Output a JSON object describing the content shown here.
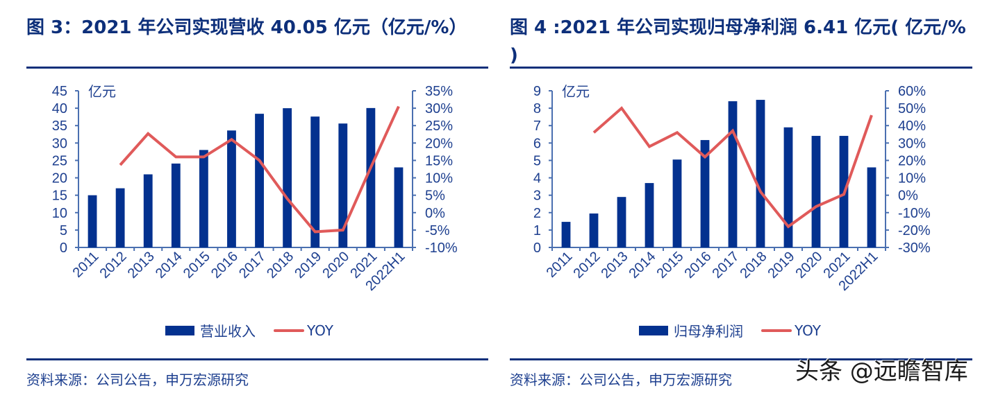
{
  "colors": {
    "bar": "#03318f",
    "line": "#e05a5a",
    "axis": "#4a6fb0",
    "text": "#1d3f8f",
    "title": "#0d2f7a"
  },
  "figures": [
    {
      "title": "图 3：2021 年公司实现营收 40.05 亿元（亿元/%）",
      "source": "资料来源：公司公告，申万宏源研究",
      "legend": {
        "bar_label": "营业收入",
        "line_label": "YOY"
      }
    },
    {
      "title": "图 4 :2021 年公司实现归母净利润 6.41 亿元( 亿元/% )",
      "source": "资料来源：公司公告，申万宏源研究",
      "legend": {
        "bar_label": "归母净利润",
        "line_label": "YOY"
      }
    }
  ],
  "watermark": "头条 @远瞻智库",
  "chart_data": [
    {
      "type": "bar",
      "title": "图 3：2021 年公司实现营收 40.05 亿元（亿元/%）",
      "categories": [
        "2011",
        "2012",
        "2013",
        "2014",
        "2015",
        "2016",
        "2017",
        "2018",
        "2019",
        "2020",
        "2021",
        "2022H1"
      ],
      "series": [
        {
          "name": "营业收入",
          "type": "bar",
          "axis": "left",
          "values": [
            15.0,
            17.0,
            21.0,
            24.1,
            28.0,
            33.6,
            38.4,
            40.0,
            37.6,
            35.6,
            40.05,
            23.0
          ]
        },
        {
          "name": "YOY",
          "type": "line",
          "axis": "right",
          "values": [
            null,
            13.7,
            22.7,
            16.0,
            16.0,
            21.0,
            15.0,
            4.0,
            -5.5,
            -5.0,
            13.0,
            30.5
          ]
        }
      ],
      "ylabel": "亿元",
      "ylim": [
        0,
        45
      ],
      "yticks": [
        "0",
        "5",
        "10",
        "15",
        "20",
        "25",
        "30",
        "35",
        "40",
        "45"
      ],
      "y2lim": [
        -10,
        35
      ],
      "y2ticks": [
        "-10%",
        "-5%",
        "0%",
        "5%",
        "10%",
        "15%",
        "20%",
        "25%",
        "30%",
        "35%"
      ],
      "grid": false,
      "legend_position": "bottom"
    },
    {
      "type": "bar",
      "title": "图 4 :2021 年公司实现归母净利润 6.41 亿元( 亿元/% )",
      "categories": [
        "2011",
        "2012",
        "2013",
        "2014",
        "2015",
        "2016",
        "2017",
        "2018",
        "2019",
        "2020",
        "2021",
        "2022H1"
      ],
      "series": [
        {
          "name": "归母净利润",
          "type": "bar",
          "axis": "left",
          "values": [
            1.47,
            1.95,
            2.9,
            3.7,
            5.05,
            6.17,
            8.4,
            8.48,
            6.9,
            6.41,
            6.41,
            4.6
          ]
        },
        {
          "name": "YOY",
          "type": "line",
          "axis": "right",
          "values": [
            null,
            36.0,
            50.0,
            28.0,
            36.0,
            22.0,
            37.0,
            2.0,
            -18.0,
            -6.5,
            0.5,
            46.0
          ]
        }
      ],
      "ylabel": "亿元",
      "ylim": [
        0,
        9
      ],
      "yticks": [
        "0",
        "1",
        "2",
        "3",
        "4",
        "5",
        "6",
        "7",
        "8",
        "9"
      ],
      "y2lim": [
        -30,
        60
      ],
      "y2ticks": [
        "-30%",
        "-20%",
        "-10%",
        "0%",
        "10%",
        "20%",
        "30%",
        "40%",
        "50%",
        "60%"
      ],
      "grid": false,
      "legend_position": "bottom"
    }
  ]
}
